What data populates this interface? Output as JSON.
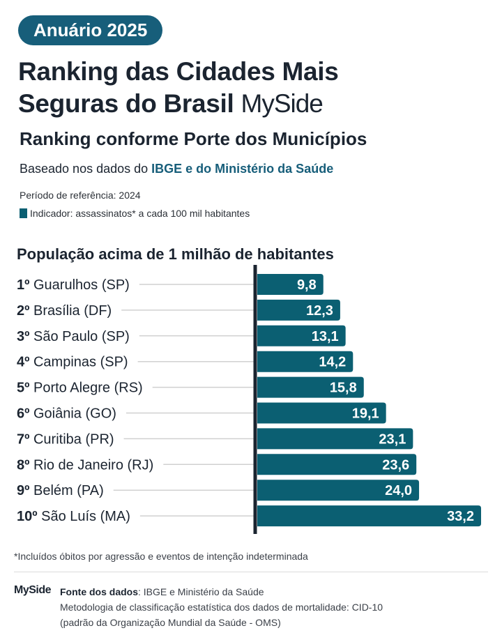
{
  "badge": "Anuário 2025",
  "title_line1": "Ranking das Cidades Mais",
  "title_line2": "Seguras do Brasil",
  "logo": "MySide",
  "subtitle": "Ranking conforme Porte dos Municípios",
  "based_prefix": "Baseado nos dados do ",
  "based_highlight": "IBGE e do Ministério da Saúde",
  "period": "Período de referência: 2024",
  "indicator": "Indicador: assassinatos* a cada 100 mil habitantes",
  "section": "População acima de 1 milhão de habitantes",
  "footnote": "*Incluídos óbitos por agressão e eventos de intenção indeterminada",
  "footer": {
    "logo": "MySide",
    "source_label": "Fonte dos dados",
    "source_value": ": IBGE e Ministério da Saúde",
    "method_line1": "Metodologia de classificação estatística dos dados de mortalidade: CID-10",
    "method_line2": "(padrão da Organização Mundial da Saúde - OMS)"
  },
  "colors": {
    "bar": "#0b5f72",
    "badge": "#175e7a",
    "axis": "#1b2430",
    "guide": "#d0d0d0"
  },
  "chart_data": {
    "type": "bar",
    "orientation": "horizontal",
    "ranks": [
      "1º",
      "2º",
      "3º",
      "4º",
      "5º",
      "6º",
      "7º",
      "8º",
      "9º",
      "10º"
    ],
    "categories": [
      "Guarulhos (SP)",
      "Brasília (DF)",
      "São Paulo (SP)",
      "Campinas (SP)",
      "Porto Alegre (RS)",
      "Goiânia (GO)",
      "Curitiba (PR)",
      "Rio de Janeiro (RJ)",
      "Belém (PA)",
      "São Luís (MA)"
    ],
    "values": [
      9.8,
      12.3,
      13.1,
      14.2,
      15.8,
      19.1,
      23.1,
      23.6,
      24.0,
      33.2
    ],
    "labels": [
      "9,8",
      "12,3",
      "13,1",
      "14,2",
      "15,8",
      "19,1",
      "23,1",
      "23,6",
      "24,0",
      "33,2"
    ],
    "xlim": [
      0,
      33.2
    ],
    "grid": false
  }
}
